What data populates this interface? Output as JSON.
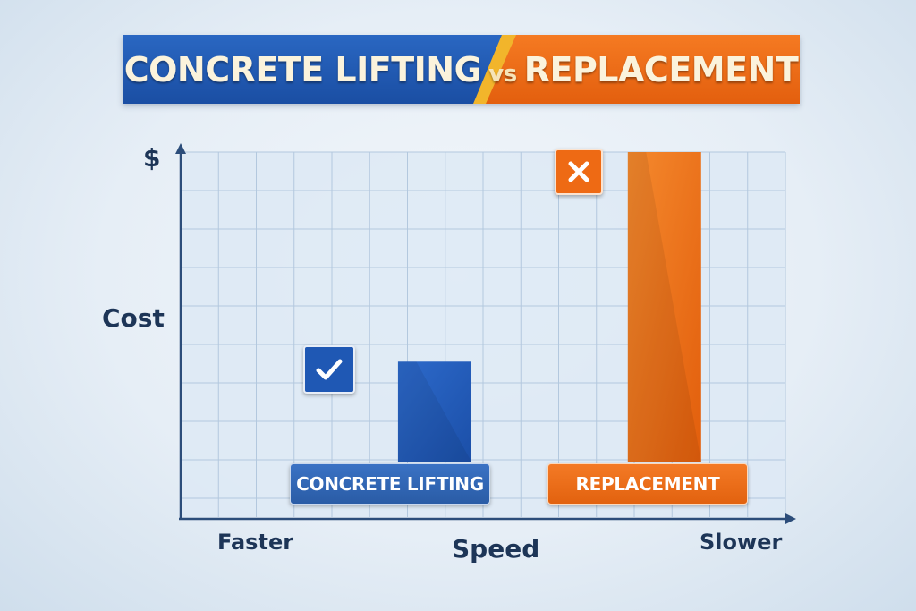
{
  "banner": {
    "title_left": "CONCRETE LIFTING",
    "title_vs": "vs",
    "title_right": "REPLACEMENT",
    "color_left": "#1f56b0",
    "color_right": "#ee6a14"
  },
  "chart_data": {
    "type": "bar",
    "ylabel": "Cost",
    "y_symbol": "$",
    "xlabel": "Speed",
    "x_low_label": "Faster",
    "x_high_label": "Slower",
    "grid": true,
    "series": [
      {
        "name": "CONCRETE LIFTING",
        "speed": 0.42,
        "cost": 0.31,
        "color": "#1f58b4",
        "badge": "check-icon"
      },
      {
        "name": "REPLACEMENT",
        "speed": 0.8,
        "cost": 0.96,
        "color": "#ee6a14",
        "badge": "x-icon"
      }
    ]
  }
}
